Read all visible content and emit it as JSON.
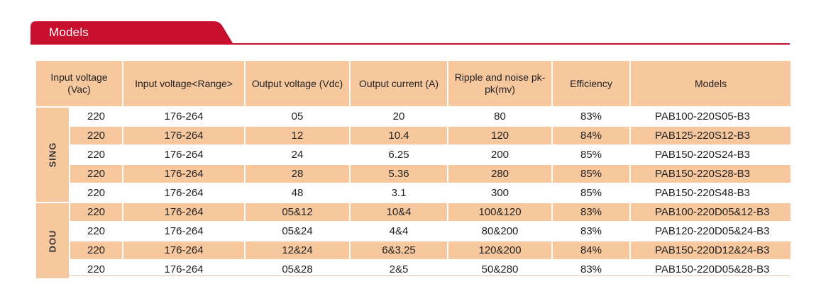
{
  "section": {
    "title": "Models"
  },
  "colors": {
    "accent": "#c8102e",
    "header_bg": "#f7c89e",
    "row_alt_bg": "#f7c89e"
  },
  "table": {
    "headers": [
      "Input voltage (Vac)",
      "Input voltage<Range>",
      "Output voltage (Vdc)",
      "Output current (A)",
      "Ripple and noise pk-pk(mv)",
      "Efficiency",
      "Models"
    ],
    "groups": [
      {
        "label": "SING",
        "rows": [
          [
            "220",
            "176-264",
            "05",
            "20",
            "80",
            "83%",
            "PAB100-220S05-B3"
          ],
          [
            "220",
            "176-264",
            "12",
            "10.4",
            "120",
            "84%",
            "PAB125-220S12-B3"
          ],
          [
            "220",
            "176-264",
            "24",
            "6.25",
            "200",
            "85%",
            "PAB150-220S24-B3"
          ],
          [
            "220",
            "176-264",
            "28",
            "5.36",
            "280",
            "85%",
            "PAB150-220S28-B3"
          ],
          [
            "220",
            "176-264",
            "48",
            "3.1",
            "300",
            "85%",
            "PAB150-220S48-B3"
          ]
        ]
      },
      {
        "label": "DOU",
        "rows": [
          [
            "220",
            "176-264",
            "05&12",
            "10&4",
            "100&120",
            "83%",
            "PAB100-220D05&12-B3"
          ],
          [
            "220",
            "176-264",
            "05&24",
            "4&4",
            "80&200",
            "83%",
            "PAB120-220D05&24-B3"
          ],
          [
            "220",
            "176-264",
            "12&24",
            "6&3.25",
            "120&200",
            "84%",
            "PAB150-220D12&24-B3"
          ],
          [
            "220",
            "176-264",
            "05&28",
            "2&5",
            "50&280",
            "83%",
            "PAB150-220D05&28-B3"
          ]
        ]
      }
    ]
  }
}
